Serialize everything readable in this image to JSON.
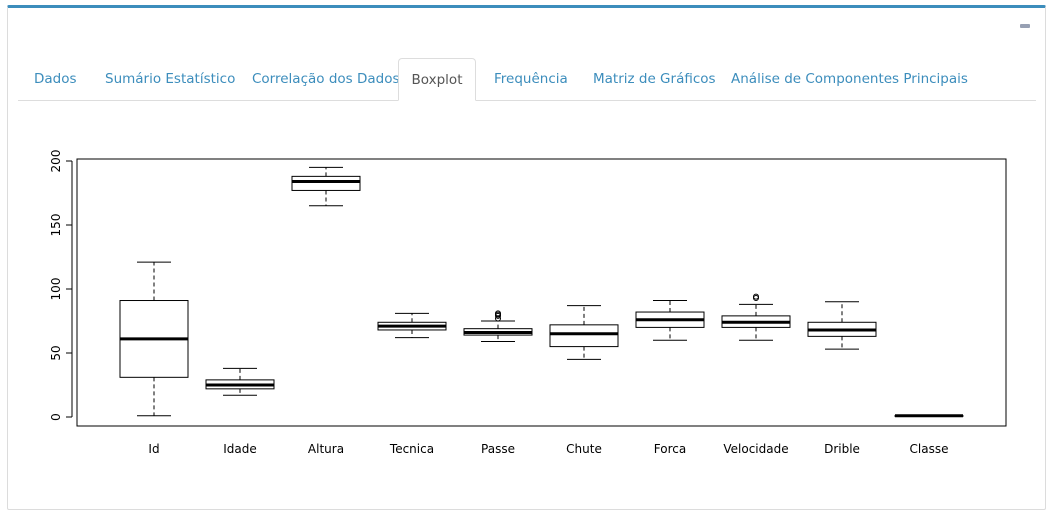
{
  "tabs": [
    {
      "label": "Dados",
      "active": false
    },
    {
      "label": "Sumário Estatístico",
      "active": false
    },
    {
      "label": "Correlação dos Dados",
      "active": false
    },
    {
      "label": "Boxplot",
      "active": true
    },
    {
      "label": "Frequência",
      "active": false
    },
    {
      "label": "Matriz de Gráficos",
      "active": false
    },
    {
      "label": "Análise de Componentes Principais",
      "active": false
    }
  ],
  "accent_color": "#3c8dbc",
  "collapse_icon": "minus-icon",
  "chart_data": {
    "type": "boxplot",
    "title": "",
    "xlabel": "",
    "ylabel": "",
    "ylim": [
      -5,
      205
    ],
    "yticks": [
      0,
      50,
      100,
      150,
      200
    ],
    "categories": [
      "Id",
      "Idade",
      "Altura",
      "Tecnica",
      "Passe",
      "Chute",
      "Forca",
      "Velocidade",
      "Drible",
      "Classe"
    ],
    "boxes": [
      {
        "name": "Id",
        "min": 1,
        "q1": 31,
        "median": 61,
        "q3": 91,
        "max": 121,
        "outliers": []
      },
      {
        "name": "Idade",
        "min": 17,
        "q1": 22,
        "median": 25,
        "q3": 29,
        "max": 38,
        "outliers": []
      },
      {
        "name": "Altura",
        "min": 165,
        "q1": 177,
        "median": 184,
        "q3": 188,
        "max": 195,
        "outliers": []
      },
      {
        "name": "Tecnica",
        "min": 62,
        "q1": 68,
        "median": 71,
        "q3": 74,
        "max": 81,
        "outliers": []
      },
      {
        "name": "Passe",
        "min": 59,
        "q1": 64,
        "median": 66,
        "q3": 69,
        "max": 75,
        "outliers": [
          77,
          79,
          80,
          81
        ]
      },
      {
        "name": "Chute",
        "min": 45,
        "q1": 55,
        "median": 65,
        "q3": 72,
        "max": 87,
        "outliers": []
      },
      {
        "name": "Forca",
        "min": 60,
        "q1": 70,
        "median": 76,
        "q3": 82,
        "max": 91,
        "outliers": []
      },
      {
        "name": "Velocidade",
        "min": 60,
        "q1": 70,
        "median": 74,
        "q3": 79,
        "max": 88,
        "outliers": [
          93,
          94
        ]
      },
      {
        "name": "Drible",
        "min": 53,
        "q1": 63,
        "median": 68,
        "q3": 74,
        "max": 90,
        "outliers": []
      },
      {
        "name": "Classe",
        "min": 1,
        "q1": 1,
        "median": 1,
        "q3": 1,
        "max": 1,
        "outliers": []
      }
    ]
  }
}
